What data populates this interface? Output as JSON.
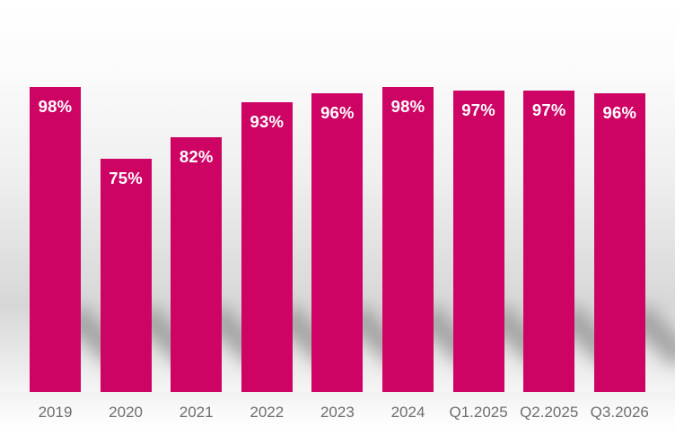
{
  "chart_data": {
    "type": "bar",
    "title": "",
    "xlabel": "",
    "ylabel": "",
    "ylim": [
      0,
      100
    ],
    "grid": false,
    "legend": false,
    "categories": [
      "2019",
      "2020",
      "2021",
      "2022",
      "2023",
      "2024",
      "Q1.2025",
      "Q2.2025",
      "Q3.2026"
    ],
    "values": [
      98,
      75,
      82,
      93,
      96,
      98,
      97,
      97,
      96
    ],
    "value_labels": [
      "98%",
      "75%",
      "82%",
      "93%",
      "96%",
      "98%",
      "97%",
      "97%",
      "96%"
    ],
    "colors": {
      "bar": "#CE0464",
      "value_label": "#FFFFFF",
      "category_label": "#6D6D6D",
      "shadow": "rgba(110,110,110,0.5)"
    }
  }
}
